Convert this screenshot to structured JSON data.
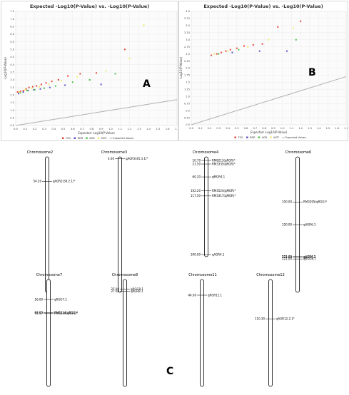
{
  "panels": [
    {
      "id": "A",
      "letter": "A",
      "title": "Expected -Log10(P-Value) vs. -Log10(P-Value)",
      "ylabel": "-Log10(P-Value)",
      "xlabel": "Expected -Log10(P-Value)",
      "legend": [
        "TSG",
        "RDR",
        "AGR",
        "MGT",
        "Expected Values"
      ]
    },
    {
      "id": "B",
      "letter": "B",
      "title": "Expected -Log10(P-Value) vs. -Log10(P-Value)",
      "ylabel": "-Log10(P-Value)",
      "xlabel": "Expected -Log10(P-Value)",
      "legend": [
        "TSG",
        "RDR",
        "AGR",
        "MGT",
        "Expected Values"
      ]
    }
  ],
  "panel_c_letter": "C",
  "colors": {
    "TSG": "#e8473b",
    "RDR": "#5a52c8",
    "AGR": "#4cc24c",
    "MGT": "#f2ea6a",
    "Expected": "#b0b0b0"
  },
  "chart_data": [
    {
      "type": "scatter",
      "title": "Expected -Log10(P-Value) vs. -Log10(P-Value)",
      "xlabel": "Expected -Log10(P-Value)",
      "ylabel": "-Log10(P-Value)",
      "xlim": [
        0,
        1.7
      ],
      "ylim": [
        0,
        7.5
      ],
      "xticks": [
        "0.0",
        "0.1",
        "0.2",
        "0.3",
        "0.4",
        "0.5",
        "0.6",
        "0.7",
        "0.8",
        "0.9",
        "1.0",
        "1.1",
        "1.2",
        "1.3",
        "1.4",
        "1.5",
        "1.6",
        "1.7"
      ],
      "yticks": [
        "0.0",
        "0.5",
        "1.0",
        "1.5",
        "2.0",
        "2.5",
        "3.0",
        "3.5",
        "4.0",
        "4.5",
        "5.0",
        "5.5",
        "6.0",
        "6.5",
        "7.0",
        "7.5"
      ],
      "legend_position": "bottom",
      "grid": true,
      "series": [
        {
          "name": "TSG",
          "color": "#e8473b",
          "x": [
            0.02,
            0.05,
            0.08,
            0.11,
            0.14,
            0.18,
            0.22,
            0.27,
            0.32,
            0.38,
            0.45,
            0.55,
            0.68,
            0.85,
            1.15
          ],
          "y": [
            2.2,
            2.25,
            2.3,
            2.4,
            2.5,
            2.55,
            2.6,
            2.7,
            2.8,
            2.9,
            3.0,
            3.25,
            3.4,
            3.45,
            5.0
          ]
        },
        {
          "name": "RDR",
          "color": "#5a52c8",
          "x": [
            0.03,
            0.08,
            0.13,
            0.19,
            0.26,
            0.36,
            0.52,
            0.9
          ],
          "y": [
            2.1,
            2.2,
            2.3,
            2.35,
            2.4,
            2.5,
            2.65,
            2.7
          ]
        },
        {
          "name": "AGR",
          "color": "#4cc24c",
          "x": [
            0.05,
            0.12,
            0.2,
            0.3,
            0.42,
            0.6,
            0.78,
            1.05
          ],
          "y": [
            2.15,
            2.3,
            2.35,
            2.45,
            2.6,
            2.85,
            3.0,
            3.4
          ]
        },
        {
          "name": "MGT",
          "color": "#f2ea6a",
          "x": [
            0.04,
            0.1,
            0.17,
            0.25,
            0.35,
            0.48,
            0.65,
            0.95,
            1.2,
            1.35
          ],
          "y": [
            2.2,
            2.35,
            2.45,
            2.55,
            2.7,
            2.95,
            3.2,
            3.6,
            4.4,
            6.6
          ]
        },
        {
          "name": "Expected Values",
          "color": "#b0b0b0",
          "x": [
            0,
            1.7
          ],
          "y": [
            0,
            1.7
          ],
          "line": true
        }
      ]
    },
    {
      "type": "scatter",
      "title": "Expected -Log10(P-Value) vs. -Log10(P-Value)",
      "xlabel": "Expected -Log10(P-Value)",
      "ylabel": "-Log10(P-Value)",
      "xlim": [
        0,
        1.7
      ],
      "ylim": [
        0,
        4.0
      ],
      "xticks": [
        "0.0",
        "0.1",
        "0.2",
        "0.3",
        "0.4",
        "0.5",
        "0.6",
        "0.7",
        "0.8",
        "0.9",
        "1.0",
        "1.1",
        "1.2",
        "1.3",
        "1.4",
        "1.5",
        "1.6",
        "1.7"
      ],
      "yticks": [
        "0.0",
        "0.25",
        "0.5",
        "0.75",
        "1.0",
        "1.25",
        "1.5",
        "1.75",
        "2.0",
        "2.25",
        "2.5",
        "2.75",
        "3.0",
        "3.25",
        "3.5",
        "3.75",
        "4.0"
      ],
      "legend_position": "bottom",
      "grid": true,
      "series": [
        {
          "name": "TSG",
          "color": "#e8473b",
          "x": [
            0.22,
            0.28,
            0.33,
            0.38,
            0.43,
            0.5,
            0.58,
            0.68,
            0.78,
            0.95,
            1.2
          ],
          "y": [
            2.45,
            2.5,
            2.55,
            2.6,
            2.65,
            2.7,
            2.78,
            2.82,
            2.85,
            3.45,
            3.65
          ]
        },
        {
          "name": "RDR",
          "color": "#5a52c8",
          "x": [
            0.45,
            0.75,
            1.05
          ],
          "y": [
            2.55,
            2.6,
            2.6
          ]
        },
        {
          "name": "AGR",
          "color": "#4cc24c",
          "x": [
            0.3,
            0.52,
            1.15
          ],
          "y": [
            2.5,
            2.65,
            3.0
          ]
        },
        {
          "name": "MGT",
          "color": "#f2ea6a",
          "x": [
            0.25,
            0.4,
            0.62,
            0.85,
            1.12
          ],
          "y": [
            2.5,
            2.6,
            2.75,
            3.0,
            3.4
          ]
        },
        {
          "name": "Expected Values",
          "color": "#b0b0b0",
          "x": [
            0,
            1.7
          ],
          "y": [
            0,
            1.7
          ],
          "line": true
        }
      ]
    },
    {
      "type": "diagram",
      "chromosomes": [
        {
          "name": "Chromosome2",
          "markers": [
            {
              "pos": "54.20",
              "label": "qAGR2(30.2.1)*"
            }
          ]
        },
        {
          "name": "Chromosome3",
          "markers": [
            {
              "pos": "4.00",
              "label": "qAGR3(45.3.1)*"
            }
          ]
        },
        {
          "name": "Chromosome4",
          "markers": [
            {
              "pos": "10.70",
              "label": "RM8213(qRGR)*"
            },
            {
              "pos": "21.50",
              "label": "RM3335(qRGR)*"
            },
            {
              "pos": "60.20",
              "label": "qMGR4.1"
            },
            {
              "pos": "102.20",
              "label": "RM3524(qMGR)*"
            },
            {
              "pos": "117.50",
              "label": "RM3317(qMGR)*"
            },
            {
              "pos": "300.00",
              "label": "qAGR4.1"
            }
          ]
        },
        {
          "name": "Chromosome6",
          "markers": [
            {
              "pos": "100.00",
              "label": "RM3295(qRGG)*"
            },
            {
              "pos": "150.00",
              "label": "qAGR6.1"
            },
            {
              "pos": "221.00",
              "label": "qAGR6.2"
            },
            {
              "pos": "221.00",
              "label": "qRGG6.1"
            },
            {
              "pos": "222.00",
              "label": "qAGR6.3"
            }
          ]
        },
        {
          "name": "Chromosome7",
          "markers": [
            {
              "pos": "56.00",
              "label": "qRGG7.1"
            },
            {
              "pos": "93.00",
              "label": "RM6214(qRGG)*"
            },
            {
              "pos": "95.57",
              "label": "RM6249(qRGG)*"
            }
          ]
        },
        {
          "name": "Chromosome8",
          "markers": [
            {
              "pos": "27.00",
              "label": "qRGG8.1"
            },
            {
              "pos": "27.00",
              "label": "qAGR8.1"
            }
          ]
        },
        {
          "name": "Chromosome11",
          "markers": [
            {
              "pos": "44.00",
              "label": "qRGR11.1"
            }
          ]
        },
        {
          "name": "Chromosome12",
          "markers": [
            {
              "pos": "110.30",
              "label": "qAGR12.2.1*"
            }
          ]
        }
      ]
    }
  ]
}
